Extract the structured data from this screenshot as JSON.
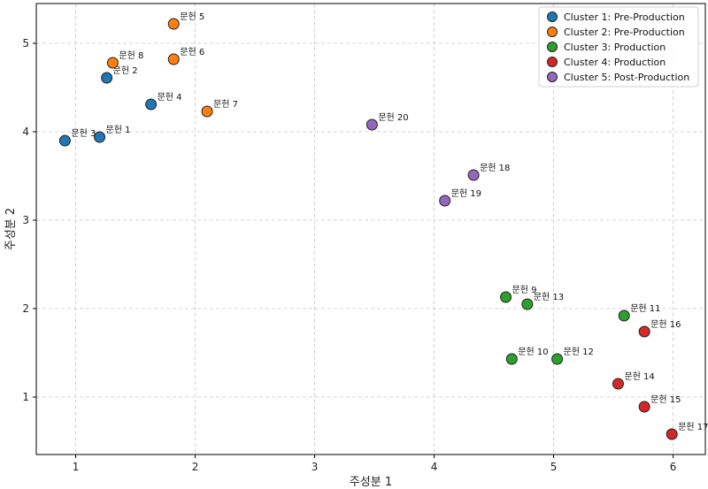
{
  "chart_data": {
    "type": "scatter",
    "title": "",
    "xlabel": "주성분 1",
    "ylabel": "주성분 2",
    "xlim": [
      0.67,
      6.27
    ],
    "ylim": [
      0.35,
      5.45
    ],
    "xticks": [
      1,
      2,
      3,
      4,
      5,
      6
    ],
    "yticks": [
      1,
      2,
      3,
      4,
      5
    ],
    "grid": true,
    "legend_position": "top-right",
    "series": [
      {
        "name": "Cluster 1: Pre-Production",
        "color": "#1f77b4",
        "points": [
          {
            "label": "문헌 1",
            "x": 1.2,
            "y": 3.94
          },
          {
            "label": "문헌 2",
            "x": 1.26,
            "y": 4.61
          },
          {
            "label": "문헌 3",
            "x": 0.91,
            "y": 3.9
          },
          {
            "label": "문헌 4",
            "x": 1.63,
            "y": 4.31
          }
        ]
      },
      {
        "name": "Cluster 2: Pre-Production",
        "color": "#ff7f0e",
        "points": [
          {
            "label": "문헌 5",
            "x": 1.82,
            "y": 5.22
          },
          {
            "label": "문헌 6",
            "x": 1.82,
            "y": 4.82
          },
          {
            "label": "문헌 7",
            "x": 2.1,
            "y": 4.23
          },
          {
            "label": "문헌 8",
            "x": 1.31,
            "y": 4.78
          }
        ]
      },
      {
        "name": "Cluster 3: Production",
        "color": "#2ca02c",
        "points": [
          {
            "label": "문헌 9",
            "x": 4.6,
            "y": 2.13
          },
          {
            "label": "문헌 10",
            "x": 4.65,
            "y": 1.43
          },
          {
            "label": "문헌 11",
            "x": 5.59,
            "y": 1.92
          },
          {
            "label": "문헌 12",
            "x": 5.03,
            "y": 1.43
          },
          {
            "label": "문헌 13",
            "x": 4.78,
            "y": 2.05
          }
        ]
      },
      {
        "name": "Cluster 4: Production",
        "color": "#d62728",
        "points": [
          {
            "label": "문헌 14",
            "x": 5.54,
            "y": 1.15
          },
          {
            "label": "문헌 15",
            "x": 5.76,
            "y": 0.89
          },
          {
            "label": "문헌 16",
            "x": 5.76,
            "y": 1.74
          },
          {
            "label": "문헌 17",
            "x": 5.99,
            "y": 0.58
          }
        ]
      },
      {
        "name": "Cluster 5: Post-Production",
        "color": "#9467bd",
        "points": [
          {
            "label": "문헌 18",
            "x": 4.33,
            "y": 3.51
          },
          {
            "label": "문헌 19",
            "x": 4.09,
            "y": 3.22
          },
          {
            "label": "문헌 20",
            "x": 3.48,
            "y": 4.08
          }
        ]
      }
    ]
  }
}
